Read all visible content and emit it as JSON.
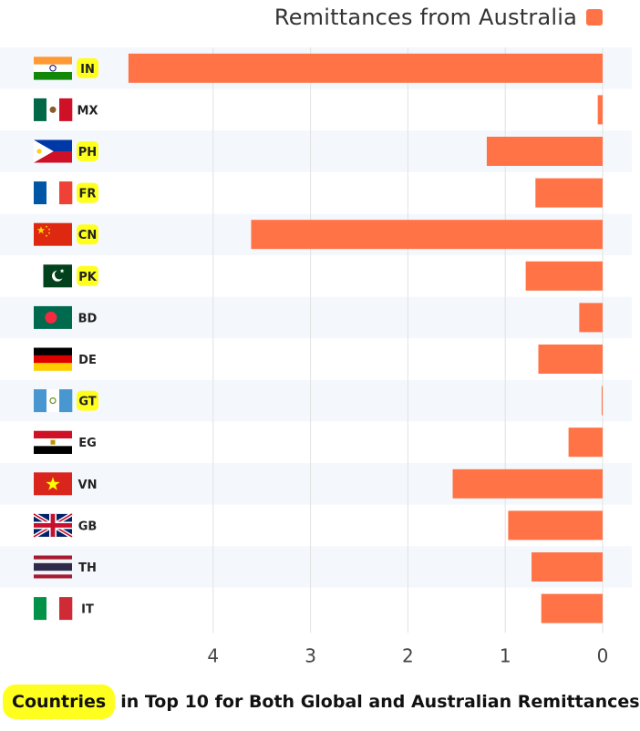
{
  "colors": {
    "bar": "#ff7346",
    "highlight": "#ffff1f",
    "band": "#f4f8fd",
    "grid": "#e2e2e2"
  },
  "legend": {
    "label": "Remittances from Australia"
  },
  "caption": {
    "highlight": "Countries",
    "rest": "in Top 10 for Both Global and Australian Remittances"
  },
  "chart_data": {
    "type": "bar",
    "orientation": "horizontal",
    "x_axis": "reversed",
    "series": [
      {
        "name": "Remittances from Australia"
      }
    ],
    "categories": [
      "IN",
      "MX",
      "PH",
      "FR",
      "CN",
      "PK",
      "BD",
      "DE",
      "GT",
      "EG",
      "VN",
      "GB",
      "TH",
      "IT"
    ],
    "values": [
      4.87,
      0.05,
      1.19,
      0.69,
      3.61,
      0.79,
      0.24,
      0.66,
      0.01,
      0.35,
      1.54,
      0.97,
      0.73,
      0.63
    ],
    "highlighted": [
      "IN",
      "PH",
      "FR",
      "CN",
      "PK",
      "GT"
    ],
    "flags": [
      "india-flag",
      "mexico-flag",
      "philippines-flag",
      "france-flag",
      "china-flag",
      "pakistan-flag",
      "bangladesh-flag",
      "germany-flag",
      "guatemala-flag",
      "egypt-flag",
      "vietnam-flag",
      "united-kingdom-flag",
      "thailand-flag",
      "italy-flag"
    ],
    "xticks": [
      4,
      3,
      2,
      1,
      0
    ],
    "xlim": [
      0,
      5
    ]
  }
}
